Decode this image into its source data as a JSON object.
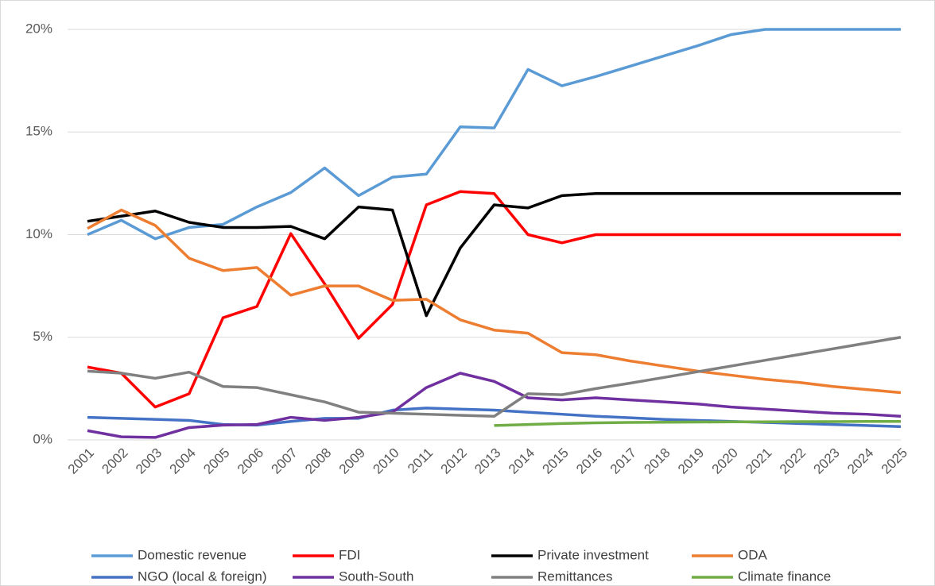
{
  "chart_data": {
    "type": "line",
    "categories": [
      "2001",
      "2002",
      "2003",
      "2004",
      "2005",
      "2006",
      "2007",
      "2008",
      "2009",
      "2010",
      "2011",
      "2012",
      "2013",
      "2014",
      "2015",
      "2016",
      "2017",
      "2018",
      "2019",
      "2020",
      "2021",
      "2022",
      "2023",
      "2024",
      "2025"
    ],
    "ylim": [
      0,
      20
    ],
    "yticks": [
      {
        "value": 0,
        "label": "0%"
      },
      {
        "value": 5,
        "label": "5%"
      },
      {
        "value": 10,
        "label": "10%"
      },
      {
        "value": 15,
        "label": "15%"
      },
      {
        "value": 20,
        "label": "20%"
      }
    ],
    "grid": true,
    "legend": "bottom",
    "series": [
      {
        "name": "Domestic revenue",
        "color": "#5b9bd5",
        "values": [
          10.0,
          10.7,
          9.8,
          10.35,
          10.5,
          11.35,
          12.05,
          13.25,
          11.9,
          12.8,
          12.95,
          15.25,
          15.2,
          18.05,
          17.25,
          17.7,
          18.2,
          18.7,
          19.2,
          19.75,
          20,
          20,
          20,
          20,
          20
        ]
      },
      {
        "name": "FDI",
        "color": "#ff0000",
        "values": [
          3.55,
          3.25,
          1.6,
          2.25,
          5.95,
          6.5,
          10.05,
          7.6,
          4.95,
          6.6,
          11.45,
          12.1,
          12.0,
          10.0,
          9.6,
          10,
          10,
          10,
          10,
          10,
          10,
          10,
          10,
          10,
          10
        ]
      },
      {
        "name": "Private investment",
        "color": "#000000",
        "values": [
          10.65,
          10.9,
          11.15,
          10.6,
          10.35,
          10.35,
          10.4,
          9.8,
          11.35,
          11.2,
          6.05,
          9.35,
          11.45,
          11.3,
          11.9,
          12,
          12,
          12,
          12,
          12,
          12,
          12,
          12,
          12,
          12
        ]
      },
      {
        "name": "ODA",
        "color": "#ed7d31",
        "values": [
          10.3,
          11.2,
          10.45,
          8.85,
          8.25,
          8.4,
          7.05,
          7.5,
          7.5,
          6.8,
          6.85,
          5.85,
          5.35,
          5.2,
          4.25,
          4.15,
          3.85,
          3.6,
          3.35,
          3.15,
          2.95,
          2.8,
          2.6,
          2.45,
          2.3
        ]
      },
      {
        "name": "NGO (local & foreign)",
        "color": "#4472c4",
        "values": [
          1.1,
          1.05,
          1.0,
          0.95,
          0.75,
          0.72,
          0.9,
          1.05,
          1.05,
          1.45,
          1.55,
          1.5,
          1.45,
          1.35,
          1.25,
          1.15,
          1.08,
          1.0,
          0.95,
          0.9,
          0.85,
          0.8,
          0.75,
          0.7,
          0.65
        ]
      },
      {
        "name": "South-South",
        "color": "#7030a0",
        "values": [
          0.45,
          0.15,
          0.12,
          0.6,
          0.72,
          0.75,
          1.1,
          0.95,
          1.1,
          1.35,
          2.55,
          3.25,
          2.85,
          2.05,
          1.95,
          2.05,
          1.95,
          1.85,
          1.75,
          1.6,
          1.5,
          1.4,
          1.3,
          1.25,
          1.15
        ]
      },
      {
        "name": "Remittances",
        "color": "#808080",
        "values": [
          3.35,
          3.25,
          3.0,
          3.3,
          2.6,
          2.55,
          2.2,
          1.85,
          1.35,
          1.3,
          1.25,
          1.2,
          1.15,
          2.25,
          2.2,
          2.5,
          2.76,
          3.04,
          3.32,
          3.6,
          3.88,
          4.16,
          4.44,
          4.72,
          5.0
        ]
      },
      {
        "name": "Climate finance",
        "color": "#70ad47",
        "values": [
          null,
          null,
          null,
          null,
          null,
          null,
          null,
          null,
          null,
          null,
          null,
          null,
          0.7,
          0.75,
          0.8,
          0.83,
          0.85,
          0.86,
          0.87,
          0.88,
          0.88,
          0.89,
          0.89,
          0.9,
          0.9
        ]
      }
    ]
  }
}
